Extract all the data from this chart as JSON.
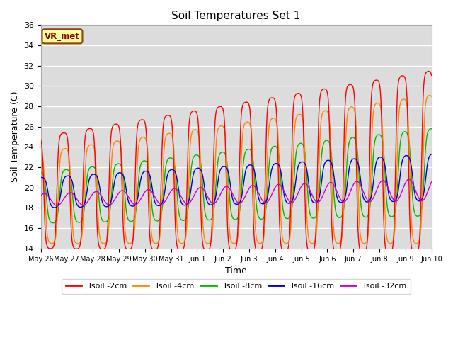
{
  "title": "Soil Temperatures Set 1",
  "xlabel": "Time",
  "ylabel": "Soil Temperature (C)",
  "ylim": [
    14,
    36
  ],
  "yticks": [
    14,
    16,
    18,
    20,
    22,
    24,
    26,
    28,
    30,
    32,
    34,
    36
  ],
  "fig_bg_color": "#ffffff",
  "plot_bg_color": "#dcdcdc",
  "grid_color": "#ffffff",
  "line_colors": {
    "Tsoil -2cm": "#ff0000",
    "Tsoil -4cm": "#ff8800",
    "Tsoil -8cm": "#00bb00",
    "Tsoil -16cm": "#0000cc",
    "Tsoil -32cm": "#cc00cc"
  },
  "annotation_text": "VR_met",
  "annotation_box_color": "#ffff99",
  "annotation_box_edge": "#8B4513"
}
